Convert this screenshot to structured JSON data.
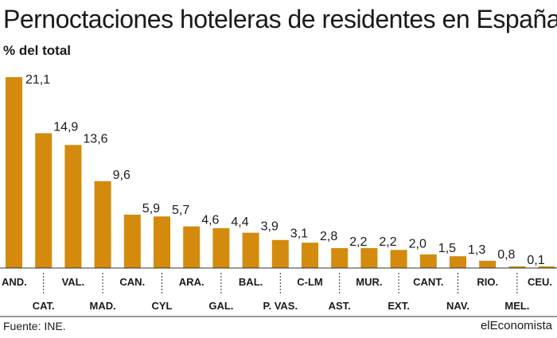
{
  "header": {
    "title": "Pernoctaciones hoteleras de residentes en España",
    "subtitle": "% del total"
  },
  "footer": {
    "source": "Fuente: INE.",
    "brand": "elEconomista"
  },
  "colors": {
    "bar": "#d38a0d",
    "text": "#1a1a1a",
    "rule": "#333333"
  },
  "chart_data": {
    "type": "bar",
    "categories": [
      "AND.",
      "CAT.",
      "VAL.",
      "MAD.",
      "CAN.",
      "CYL",
      "ARA.",
      "GAL.",
      "BAL.",
      "P. VAS.",
      "C-LM",
      "AST.",
      "MUR.",
      "EXT.",
      "CANT.",
      "NAV.",
      "RIO.",
      "MEL.",
      "CEU."
    ],
    "values": [
      21.1,
      14.9,
      13.6,
      9.6,
      5.9,
      5.7,
      4.6,
      4.4,
      3.9,
      3.1,
      2.8,
      2.2,
      2.2,
      2.0,
      1.5,
      1.3,
      0.8,
      0.1,
      0.1
    ],
    "value_labels": [
      "21,1",
      "14,9",
      "13,6",
      "9,6",
      "5,9",
      "5,7",
      "4,6",
      "4,4",
      "3,9",
      "3,1",
      "2,8",
      "2,2",
      "2,2",
      "2,0",
      "1,5",
      "1,3",
      "0,8",
      "0,1",
      "0,1"
    ],
    "title": "Pernoctaciones hoteleras de residentes en España",
    "ylabel": "% del total",
    "xlabel": "",
    "ylim": [
      0,
      21.1
    ],
    "grid": false,
    "legend": "none"
  }
}
